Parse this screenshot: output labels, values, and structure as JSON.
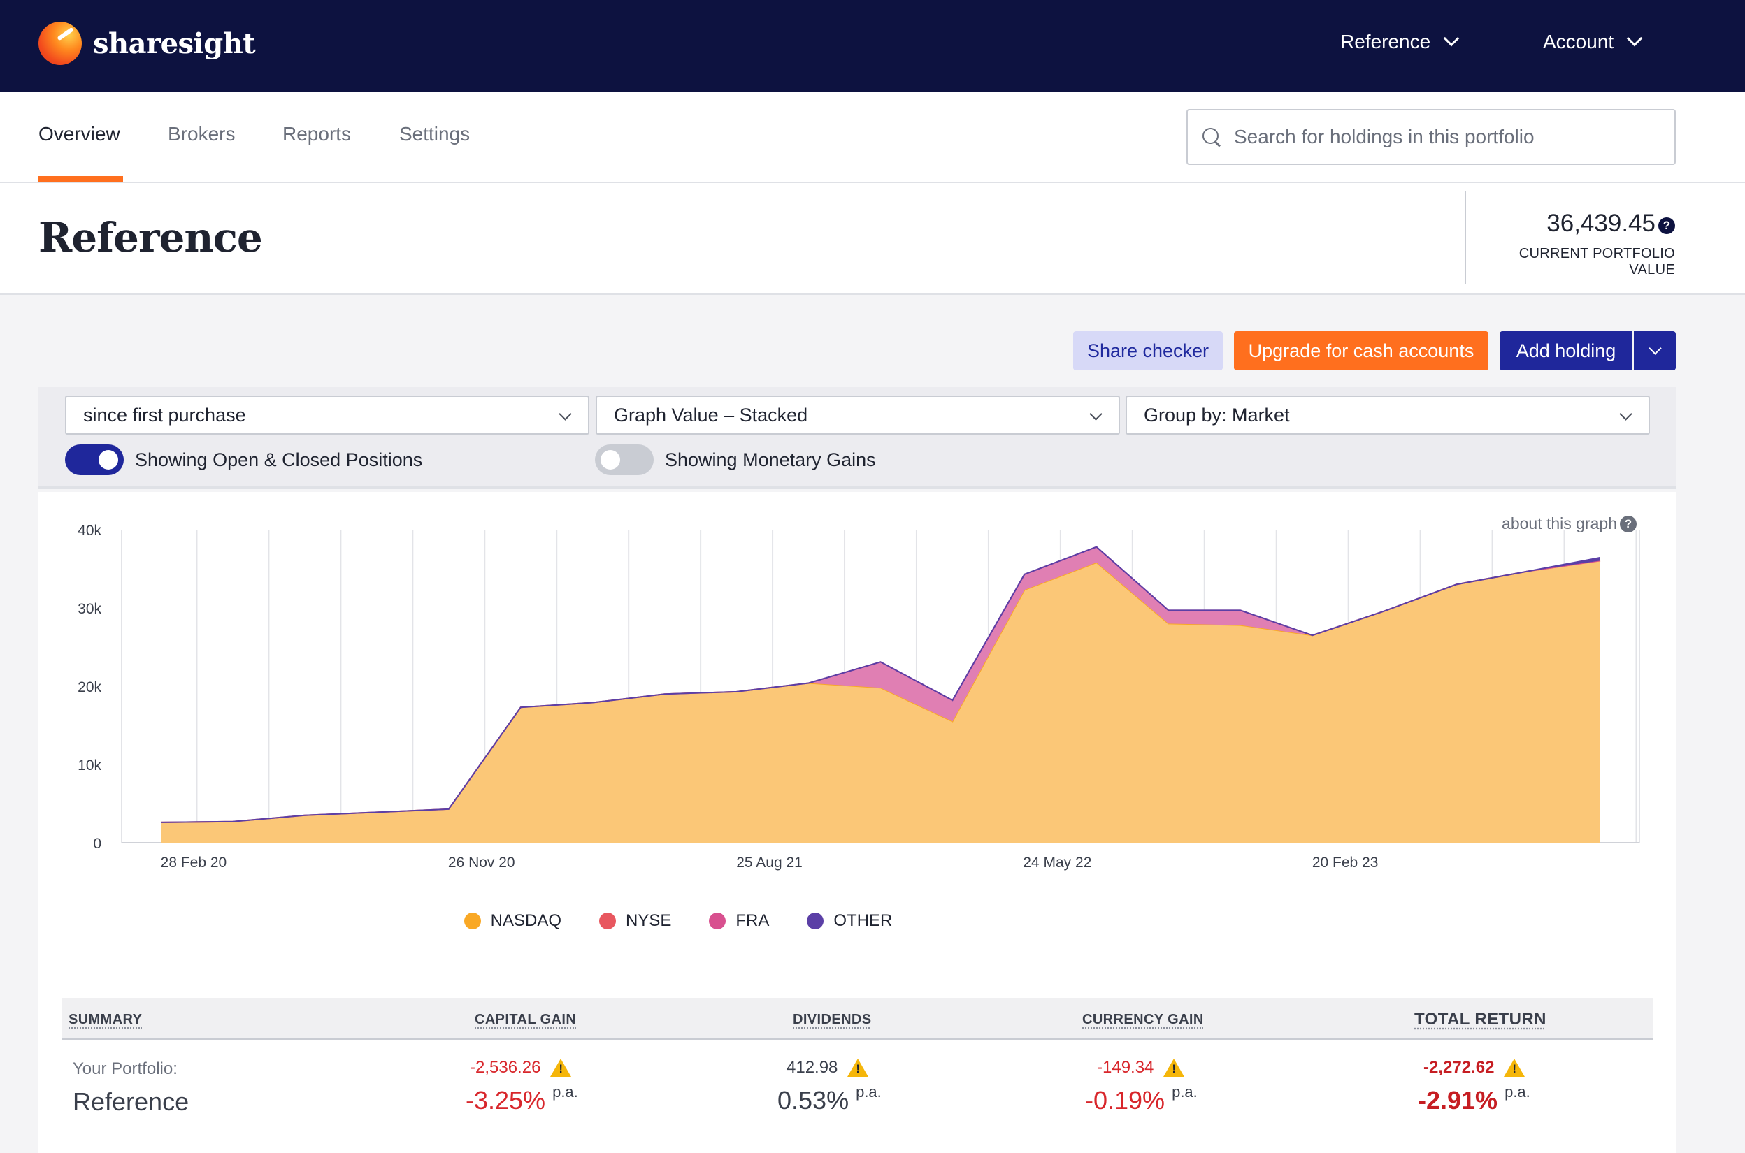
{
  "brand": {
    "name": "sharesight"
  },
  "topnav": {
    "reference_label": "Reference",
    "account_label": "Account"
  },
  "tabs": [
    {
      "label": "Overview",
      "active": true
    },
    {
      "label": "Brokers",
      "active": false
    },
    {
      "label": "Reports",
      "active": false
    },
    {
      "label": "Settings",
      "active": false
    }
  ],
  "search": {
    "placeholder": "Search for holdings in this portfolio",
    "value": ""
  },
  "header": {
    "title": "Reference",
    "portfolio_value": "36,439.45",
    "portfolio_value_label": "CURRENT PORTFOLIO VALUE",
    "help_glyph": "?"
  },
  "actions": {
    "share_checker": "Share checker",
    "upgrade": "Upgrade for cash accounts",
    "add_holding": "Add holding"
  },
  "filters": {
    "period": "since first purchase",
    "graph_mode": "Graph Value – Stacked",
    "group_by": "Group by: Market",
    "toggle_positions": {
      "label": "Showing Open & Closed Positions",
      "on": true
    },
    "toggle_gains": {
      "label": "Showing Monetary Gains",
      "on": false
    }
  },
  "chart_panel": {
    "about_label": "about this graph",
    "help_glyph": "?"
  },
  "colors": {
    "navy": "#0d1240",
    "accent_orange": "#ff6f1e",
    "primary_blue": "#1f279b",
    "nasdaq": "#f9a825",
    "nasdaq_fill": "#fbc777",
    "nyse": "#e8575f",
    "fra": "#d8508f",
    "fra_fill": "#e07fb3",
    "other": "#5b3fa6"
  },
  "chart_data": {
    "type": "area",
    "stacked": true,
    "title": "",
    "xlabel": "",
    "ylabel": "",
    "ylim": [
      0,
      40000
    ],
    "y_ticks": [
      0,
      10000,
      20000,
      30000,
      40000
    ],
    "y_tick_labels": [
      "0",
      "10k",
      "20k",
      "30k",
      "40k"
    ],
    "x_tick_labels": [
      "28 Feb 20",
      "26 Nov 20",
      "25 Aug 21",
      "24 May 22",
      "20 Feb 23"
    ],
    "x_tick_indices": [
      1,
      5,
      9,
      13,
      17
    ],
    "x_count": 21,
    "grid": true,
    "legend": [
      "NASDAQ",
      "NYSE",
      "FRA",
      "OTHER"
    ],
    "legend_position": "bottom-center",
    "series": [
      {
        "name": "NASDAQ",
        "color": "#f9a825",
        "fill": "#fbc777",
        "values": [
          2600,
          2700,
          3500,
          3900,
          4300,
          17300,
          17900,
          19000,
          19300,
          20400,
          19800,
          15500,
          32300,
          35800,
          28000,
          27800,
          26500,
          29600,
          33000,
          34700,
          36039
        ]
      },
      {
        "name": "NYSE",
        "color": "#e8575f",
        "fill": "#e8575f",
        "values": [
          0,
          0,
          0,
          0,
          0,
          0,
          0,
          0,
          0,
          0,
          0,
          0,
          0,
          0,
          0,
          0,
          0,
          0,
          0,
          0,
          0
        ]
      },
      {
        "name": "FRA",
        "color": "#d8508f",
        "fill": "#e07fb3",
        "values": [
          0,
          0,
          0,
          0,
          0,
          0,
          0,
          0,
          0,
          0,
          3300,
          2700,
          2000,
          2000,
          1700,
          1900,
          0,
          0,
          0,
          0,
          0
        ]
      },
      {
        "name": "OTHER",
        "color": "#5b3fa6",
        "fill": "#5b3fa6",
        "values": [
          0,
          0,
          0,
          0,
          0,
          0,
          0,
          0,
          0,
          0,
          0,
          0,
          0,
          0,
          0,
          0,
          0,
          0,
          0,
          0,
          400
        ]
      }
    ]
  },
  "summary": {
    "headers": {
      "summary": "SUMMARY",
      "capital_gain": "CAPITAL GAIN",
      "dividends": "DIVIDENDS",
      "currency_gain": "CURRENCY GAIN",
      "total_return": "TOTAL RETURN"
    },
    "row_label_small": "Your Portfolio:",
    "row_label_big": "Reference",
    "pa_label": "p.a.",
    "capital_gain": {
      "amount": "-2,536.26",
      "percent": "-3.25%"
    },
    "dividends": {
      "amount": "412.98",
      "percent": "0.53%"
    },
    "currency_gain": {
      "amount": "-149.34",
      "percent": "-0.19%"
    },
    "total_return": {
      "amount": "-2,272.62",
      "percent": "-2.91%"
    }
  }
}
